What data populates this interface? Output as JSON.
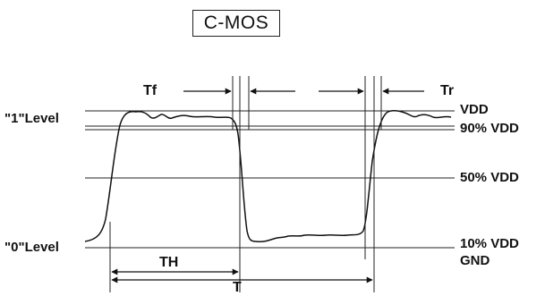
{
  "title": "C-MOS",
  "labels": {
    "vdd": "VDD",
    "vdd90": "90% VDD",
    "vdd50": "50% VDD",
    "vdd10": "10% VDD",
    "gnd": "GND",
    "one_level": "\"1\"Level",
    "zero_level": "\"0\"Level",
    "tf": "Tf",
    "tr": "Tr",
    "th": "TH",
    "t": "T"
  }
}
